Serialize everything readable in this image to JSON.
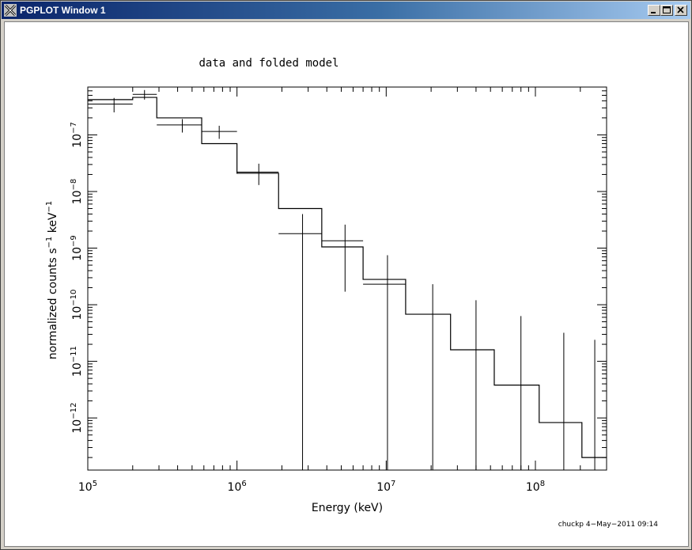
{
  "window": {
    "title": "PGPLOT Window 1"
  },
  "chart_data": {
    "type": "line",
    "title": "data and folded model",
    "xlabel": "Energy (keV)",
    "ylabel_parts": [
      "normalized counts s",
      "−1",
      " keV",
      "−1"
    ],
    "xscale": "log",
    "yscale": "log",
    "xlim": [
      100000,
      300000000
    ],
    "ylim": [
      1.2e-13,
      7e-07
    ],
    "x_ticks": [
      {
        "value": 100000,
        "base": "10",
        "exp": "5"
      },
      {
        "value": 1000000,
        "base": "10",
        "exp": "6"
      },
      {
        "value": 10000000,
        "base": "10",
        "exp": "7"
      },
      {
        "value": 100000000,
        "base": "10",
        "exp": "8"
      }
    ],
    "y_ticks": [
      {
        "value": 1e-07,
        "base": "10",
        "exp": "−7"
      },
      {
        "value": 1e-08,
        "base": "10",
        "exp": "−8"
      },
      {
        "value": 1e-09,
        "base": "10",
        "exp": "−9"
      },
      {
        "value": 1e-10,
        "base": "10",
        "exp": "−10"
      },
      {
        "value": 1e-11,
        "base": "10",
        "exp": "−11"
      },
      {
        "value": 1e-12,
        "base": "10",
        "exp": "−12"
      }
    ],
    "series": [
      {
        "kind": "data",
        "points": [
          {
            "x": 150000,
            "xlo": 100000,
            "xhi": 200000,
            "y": 3.5e-07,
            "ylo": 2.5e-07,
            "yhi": 4.5e-07
          },
          {
            "x": 240000,
            "xlo": 200000,
            "xhi": 290000,
            "y": 5.2e-07,
            "ylo": 4.2e-07,
            "yhi": 6.2e-07
          },
          {
            "x": 430000,
            "xlo": 290000,
            "xhi": 580000,
            "y": 1.5e-07,
            "ylo": 1.1e-07,
            "yhi": 1.9e-07
          },
          {
            "x": 760000,
            "xlo": 580000,
            "xhi": 1000000,
            "y": 1.15e-07,
            "ylo": 8.5e-08,
            "yhi": 1.45e-07
          },
          {
            "x": 1400000,
            "xlo": 1000000,
            "xhi": 1900000,
            "y": 2.2e-08,
            "ylo": 1.3e-08,
            "yhi": 3.1e-08
          },
          {
            "x": 2750000,
            "xlo": 1900000,
            "xhi": 3700000,
            "y": 1.8e-09,
            "ylo": 1.2e-13,
            "yhi": 4e-09
          },
          {
            "x": 5300000,
            "xlo": 3700000,
            "xhi": 7000000,
            "y": 1.35e-09,
            "ylo": 1.7e-10,
            "yhi": 2.6e-09
          },
          {
            "x": 10200000,
            "xlo": 7000000,
            "xhi": 13500000,
            "y": 2.3e-10,
            "ylo": 1.2e-13,
            "yhi": 7.5e-10
          },
          {
            "x": 20500000,
            "xlo": 13500000,
            "xhi": 27000000,
            "y": 1.2e-13,
            "ylo": 1.2e-13,
            "yhi": 2.3e-10
          },
          {
            "x": 40000000,
            "xlo": 27000000,
            "xhi": 53000000,
            "y": 1.2e-13,
            "ylo": 1.2e-13,
            "yhi": 1.2e-10
          },
          {
            "x": 80000000,
            "xlo": 53000000,
            "xhi": 106000000,
            "y": 1.2e-13,
            "ylo": 1.2e-13,
            "yhi": 6.3e-11
          },
          {
            "x": 155000000,
            "xlo": 106000000,
            "xhi": 205000000,
            "y": 1.2e-13,
            "ylo": 1.2e-13,
            "yhi": 3.2e-11
          },
          {
            "x": 250000000,
            "xlo": 205000000,
            "xhi": 300000000,
            "y": 1.2e-13,
            "ylo": 1.2e-13,
            "yhi": 2.4e-11
          }
        ]
      },
      {
        "kind": "folded model",
        "steps": [
          {
            "xlo": 100000,
            "xhi": 200000,
            "y": 4.2e-07
          },
          {
            "xlo": 200000,
            "xhi": 290000,
            "y": 4.6e-07
          },
          {
            "xlo": 290000,
            "xhi": 580000,
            "y": 2e-07
          },
          {
            "xlo": 580000,
            "xhi": 1000000,
            "y": 7e-08
          },
          {
            "xlo": 1000000,
            "xhi": 1900000,
            "y": 2.1e-08
          },
          {
            "xlo": 1900000,
            "xhi": 3700000,
            "y": 5e-09
          },
          {
            "xlo": 3700000,
            "xhi": 7000000,
            "y": 1.05e-09
          },
          {
            "xlo": 7000000,
            "xhi": 13500000,
            "y": 2.8e-10
          },
          {
            "xlo": 13500000,
            "xhi": 27000000,
            "y": 6.8e-11
          },
          {
            "xlo": 27000000,
            "xhi": 53000000,
            "y": 1.6e-11
          },
          {
            "xlo": 53000000,
            "xhi": 106000000,
            "y": 3.8e-12
          },
          {
            "xlo": 106000000,
            "xhi": 205000000,
            "y": 8.3e-13
          },
          {
            "xlo": 205000000,
            "xhi": 300000000,
            "y": 2e-13
          }
        ]
      }
    ],
    "footer": "chuckp   4−May−2011 09:14"
  }
}
